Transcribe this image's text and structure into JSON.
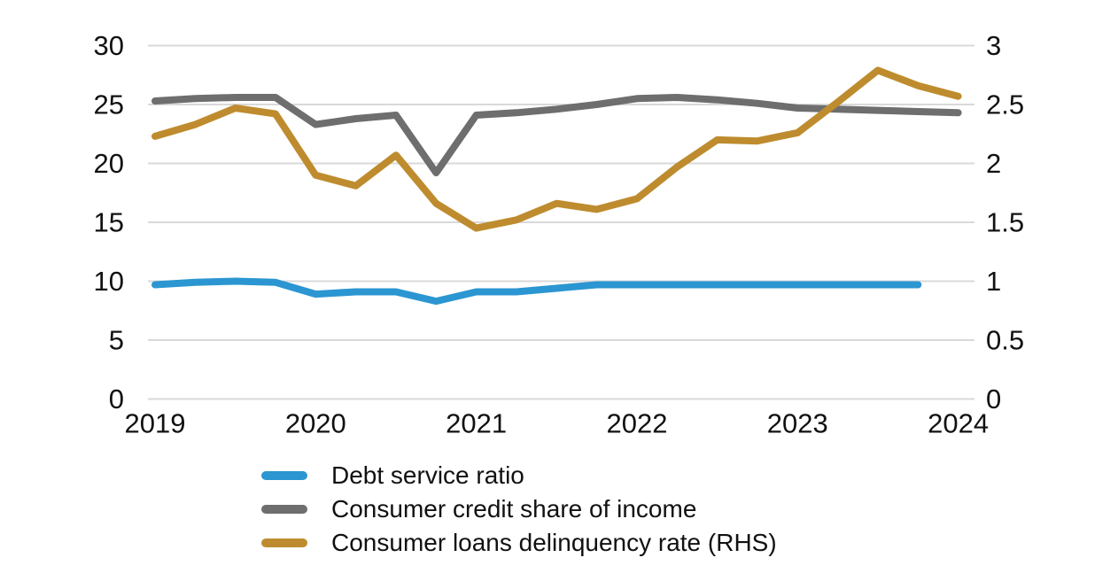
{
  "colors": {
    "background": "#ffffff",
    "gridline": "#d9d9d9",
    "text": "#111111",
    "blue": "#2b96d1",
    "gray": "#6e6e6e",
    "gold": "#be8c2e"
  },
  "chart_data": {
    "type": "line",
    "title": "",
    "grid": true,
    "legend_position": "bottom-left",
    "x_axis": {
      "tick_labels": [
        "2019",
        "2020",
        "2021",
        "2022",
        "2023",
        "2024"
      ],
      "points_per_year": 4,
      "note": "quarterly data from 2019Q1 to 2024Q1"
    },
    "y_axis_left": {
      "ticks": [
        0,
        5,
        10,
        15,
        20,
        25,
        30
      ],
      "range": [
        0,
        30
      ]
    },
    "y_axis_right": {
      "ticks": [
        0,
        0.5,
        1,
        1.5,
        2,
        2.5,
        3
      ],
      "range": [
        0,
        3
      ]
    },
    "series": [
      {
        "name": "Debt service ratio",
        "axis": "left",
        "color": "#2b96d1",
        "x_start": 2019.0,
        "x_step": 0.25,
        "values": [
          9.7,
          9.9,
          10.0,
          9.9,
          8.9,
          9.1,
          9.1,
          8.3,
          9.1,
          9.1,
          9.4,
          9.7,
          9.7,
          9.7,
          9.7,
          9.7,
          9.7,
          9.7,
          9.7,
          9.7
        ]
      },
      {
        "name": "Consumer credit share of income",
        "axis": "left",
        "color": "#6e6e6e",
        "x_start": 2019.0,
        "x_step": 0.25,
        "values": [
          25.3,
          25.5,
          25.6,
          25.6,
          23.3,
          23.8,
          24.1,
          19.2,
          24.1,
          24.3,
          24.6,
          25.0,
          25.5,
          25.6,
          25.4,
          25.1,
          24.7,
          24.6,
          24.5,
          24.4,
          24.3
        ]
      },
      {
        "name": "Consumer loans delinquency rate (RHS)",
        "axis": "right",
        "color": "#be8c2e",
        "x_start": 2019.0,
        "x_step": 0.25,
        "values": [
          2.23,
          2.33,
          2.47,
          2.42,
          1.9,
          1.81,
          2.07,
          1.66,
          1.45,
          1.52,
          1.66,
          1.61,
          1.7,
          1.97,
          2.2,
          2.19,
          2.26,
          2.52,
          2.79,
          2.66,
          2.57
        ]
      }
    ]
  }
}
